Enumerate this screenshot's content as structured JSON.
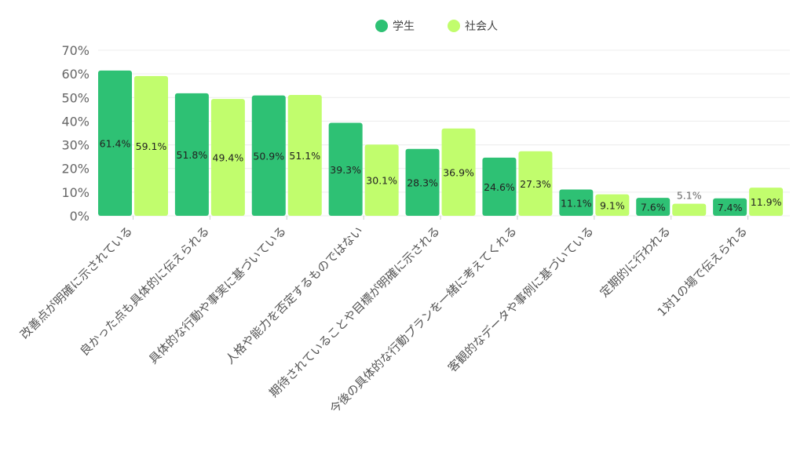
{
  "chart_data": {
    "type": "bar",
    "categories": [
      "改善点が明確に示されている",
      "良かった点も具体的に伝えられる",
      "具体的な行動や事実に基づいている",
      "人格や能力を否定するものではない",
      "期待されていることや目標が明確に示される",
      "今後の具体的な行動プランを一緒に考えてくれる",
      "客観的なデータや事例に基づいている",
      "定期的に行われる",
      "1対1の場で伝えられる"
    ],
    "series": [
      {
        "name": "学生",
        "color": "#2ec174",
        "values": [
          61.4,
          51.8,
          50.9,
          39.3,
          28.3,
          24.6,
          11.1,
          7.6,
          7.4
        ],
        "labels": [
          "61.4%",
          "51.8%",
          "50.9%",
          "39.3%",
          "28.3%",
          "24.6%",
          "11.1%",
          "7.6%",
          "7.4%"
        ]
      },
      {
        "name": "社会人",
        "color": "#c1fd6d",
        "values": [
          59.1,
          49.4,
          51.1,
          30.1,
          36.9,
          27.3,
          9.1,
          5.1,
          11.9
        ],
        "labels": [
          "59.1%",
          "49.4%",
          "51.1%",
          "30.1%",
          "36.9%",
          "27.3%",
          "9.1%",
          "5.1%",
          "11.9%"
        ]
      }
    ],
    "yticks": [
      "0%",
      "10%",
      "20%",
      "30%",
      "40%",
      "50%",
      "60%",
      "70%"
    ],
    "ylim": [
      0,
      70
    ],
    "grid": true,
    "legend": "top-center",
    "title": "",
    "xlabel": "",
    "ylabel": ""
  }
}
